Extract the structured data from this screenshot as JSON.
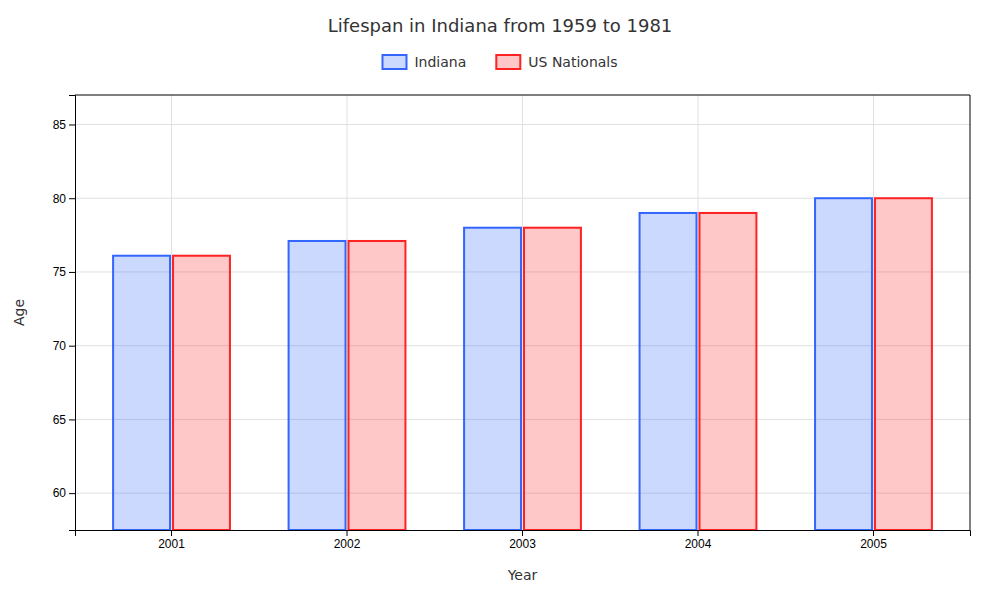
{
  "chart_data": {
    "type": "bar",
    "title": "Lifespan in Indiana from 1959 to 1981",
    "xlabel": "Year",
    "ylabel": "Age",
    "categories": [
      "2001",
      "2002",
      "2003",
      "2004",
      "2005"
    ],
    "series": [
      {
        "name": "Indiana",
        "color": "#3366ff",
        "values": [
          76.1,
          77.1,
          78.0,
          79.0,
          80.0
        ]
      },
      {
        "name": "US Nationals",
        "color": "#ff2222",
        "values": [
          76.1,
          77.1,
          78.0,
          79.0,
          80.0
        ]
      }
    ],
    "ylim": [
      57.5,
      87
    ],
    "yticks": [
      60,
      65,
      70,
      75,
      80,
      85
    ],
    "grid": true,
    "legend": "top"
  }
}
